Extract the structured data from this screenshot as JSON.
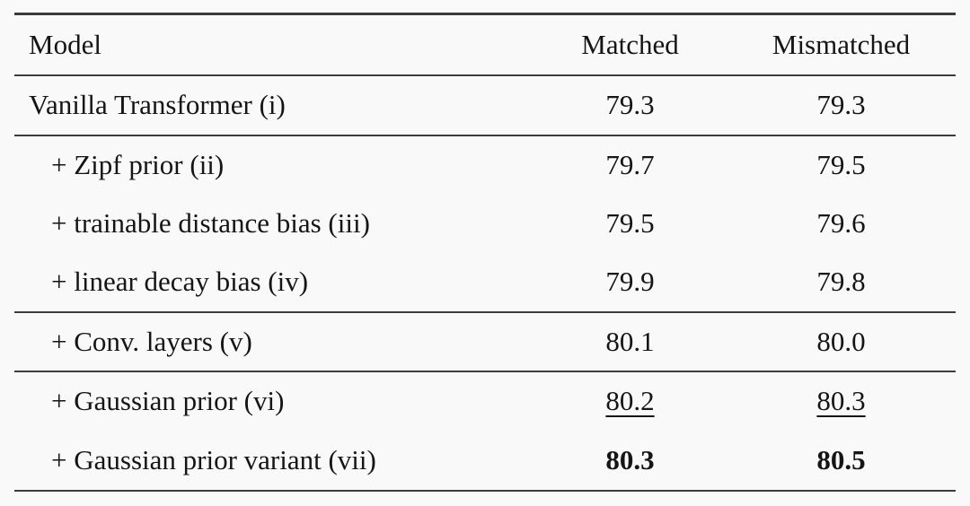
{
  "table": {
    "description": "Model ablation results table",
    "columns": {
      "model": "Model",
      "matched": "Matched",
      "mismatched": "Mismatched"
    },
    "rows": [
      {
        "model": "Vanilla Transformer (i)",
        "matched": "79.3",
        "mismatched": "79.3",
        "emphasis": "none"
      },
      {
        "model": "+ Zipf prior (ii)",
        "matched": "79.7",
        "mismatched": "79.5",
        "emphasis": "none"
      },
      {
        "model": "+ trainable distance bias (iii)",
        "matched": "79.5",
        "mismatched": "79.6",
        "emphasis": "none"
      },
      {
        "model": "+ linear decay bias (iv)",
        "matched": "79.9",
        "mismatched": "79.8",
        "emphasis": "none"
      },
      {
        "model": "+ Conv. layers (v)",
        "matched": "80.1",
        "mismatched": "80.0",
        "emphasis": "none"
      },
      {
        "model": "+ Gaussian prior (vi)",
        "matched": "80.2",
        "mismatched": "80.3",
        "emphasis": "underline"
      },
      {
        "model": "+ Gaussian prior variant (vii)",
        "matched": "80.3",
        "mismatched": "80.5",
        "emphasis": "bold"
      }
    ],
    "colors": {
      "text": "#151515",
      "rule": "#3c3c3c",
      "background": "#f9f9f9"
    }
  }
}
